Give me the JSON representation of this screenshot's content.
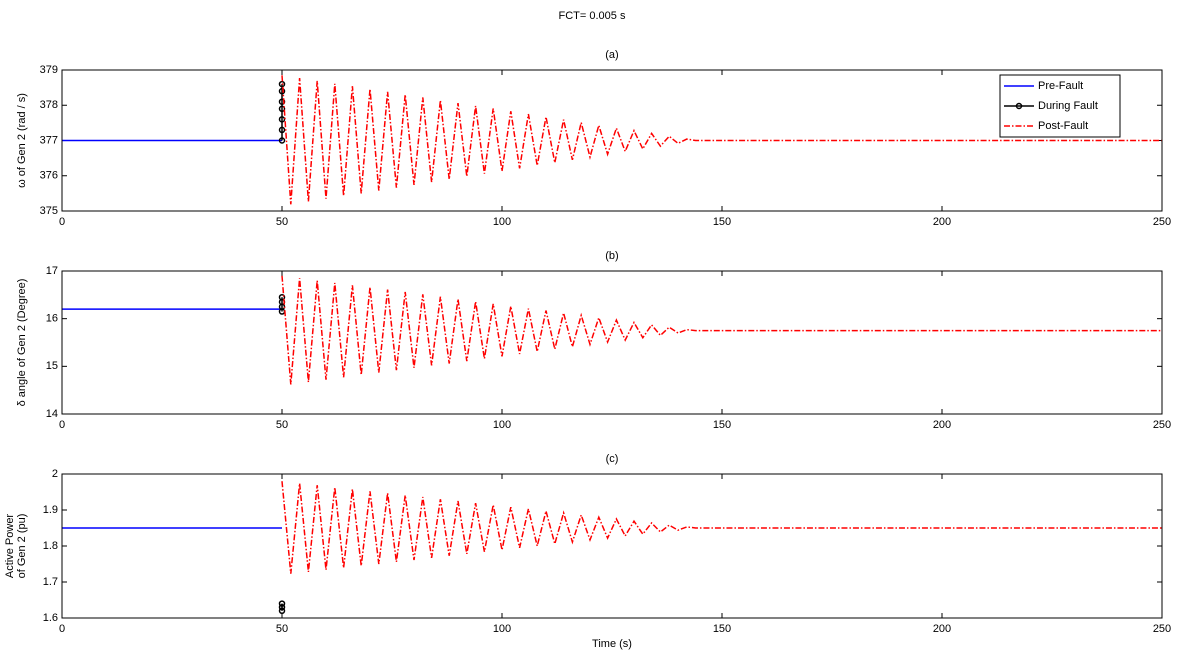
{
  "title": "FCT= 0.005 s",
  "chart_data": [
    {
      "type": "line",
      "title": "(a)",
      "ylabel": "ω of Gen 2 (rad / s)",
      "xlim": [
        0,
        250
      ],
      "xticks": [
        0,
        50,
        100,
        150,
        200,
        250
      ],
      "ylim": [
        375,
        379
      ],
      "yticks": [
        375,
        376,
        377,
        378,
        379
      ],
      "legend": "upper right",
      "series": [
        {
          "name": "Pre-Fault",
          "color": "#0000ff",
          "x": [
            0,
            50
          ],
          "values": [
            377,
            377
          ]
        },
        {
          "name": "During Fault",
          "color": "#000000",
          "marker": "o",
          "x": [
            50,
            50,
            50,
            50,
            50,
            50,
            50
          ],
          "values": [
            377,
            377.3,
            377.6,
            377.9,
            378.1,
            378.4,
            378.6
          ]
        },
        {
          "name": "Post-Fault",
          "color": "#ff0000",
          "dash": "dashdot",
          "x": [
            50,
            52,
            54,
            56,
            58,
            60,
            62,
            64,
            66,
            68,
            70,
            72,
            74,
            76,
            78,
            80,
            82,
            84,
            86,
            88,
            90,
            92,
            94,
            96,
            98,
            100,
            102,
            104,
            106,
            108,
            110,
            112,
            114,
            116,
            118,
            120,
            122,
            124,
            126,
            128,
            130,
            132,
            134,
            136,
            138,
            140,
            142,
            144,
            250
          ],
          "values": [
            378.85,
            375.19,
            378.77,
            375.27,
            378.69,
            375.35,
            378.61,
            375.43,
            378.54,
            375.5,
            378.46,
            375.58,
            378.38,
            375.66,
            378.3,
            375.74,
            378.22,
            375.82,
            378.14,
            375.9,
            378.06,
            375.98,
            377.98,
            376.06,
            377.91,
            376.13,
            377.83,
            376.21,
            377.75,
            376.29,
            377.67,
            376.37,
            377.59,
            376.45,
            377.51,
            376.53,
            377.43,
            376.61,
            377.35,
            376.69,
            377.28,
            376.76,
            377.2,
            376.84,
            377.12,
            376.92,
            377.04,
            377,
            377
          ]
        }
      ]
    },
    {
      "type": "line",
      "title": "(b)",
      "ylabel": "δ angle of Gen 2 (Degree)",
      "xlim": [
        0,
        250
      ],
      "xticks": [
        0,
        50,
        100,
        150,
        200,
        250
      ],
      "ylim": [
        14,
        17
      ],
      "yticks": [
        14,
        15,
        16,
        17
      ],
      "series": [
        {
          "color": "#0000ff",
          "x": [
            0,
            50
          ],
          "values": [
            16.2,
            16.2
          ]
        },
        {
          "color": "#000000",
          "marker": "o",
          "x": [
            50,
            50,
            50,
            50
          ],
          "values": [
            16.15,
            16.25,
            16.35,
            16.45
          ]
        },
        {
          "color": "#ff0000",
          "dash": "dashdot",
          "x": [
            50,
            52,
            54,
            56,
            58,
            60,
            62,
            64,
            66,
            68,
            70,
            72,
            74,
            76,
            78,
            80,
            82,
            84,
            86,
            88,
            90,
            92,
            94,
            96,
            98,
            100,
            102,
            104,
            106,
            108,
            110,
            112,
            114,
            116,
            118,
            120,
            122,
            124,
            126,
            128,
            130,
            132,
            134,
            136,
            138,
            140,
            142,
            144,
            250
          ],
          "values": [
            16.9,
            14.62,
            16.85,
            14.67,
            16.8,
            14.72,
            16.75,
            14.77,
            16.7,
            14.82,
            16.66,
            14.87,
            16.61,
            14.92,
            16.56,
            14.97,
            16.51,
            15.02,
            16.46,
            15.06,
            16.41,
            15.11,
            16.36,
            15.16,
            16.31,
            15.21,
            16.26,
            15.26,
            16.21,
            15.31,
            16.17,
            15.36,
            16.12,
            15.41,
            16.07,
            15.46,
            16.02,
            15.51,
            15.97,
            15.55,
            15.92,
            15.6,
            15.87,
            15.65,
            15.82,
            15.7,
            15.77,
            15.75,
            15.75
          ]
        }
      ]
    },
    {
      "type": "line",
      "title": "(c)",
      "ylabel": [
        "Active Power",
        "of Gen 2 (pu)"
      ],
      "xlabel": "Time (s)",
      "xlim": [
        0,
        250
      ],
      "xticks": [
        0,
        50,
        100,
        150,
        200,
        250
      ],
      "ylim": [
        1.6,
        2
      ],
      "yticks": [
        1.6,
        1.7,
        1.8,
        1.9,
        2
      ],
      "series": [
        {
          "color": "#0000ff",
          "x": [
            0,
            50
          ],
          "values": [
            1.85,
            1.85
          ]
        },
        {
          "color": "#000000",
          "marker": "o",
          "x": [
            50,
            50,
            50
          ],
          "values": [
            1.62,
            1.63,
            1.64
          ]
        },
        {
          "color": "#ff0000",
          "dash": "dashdot",
          "x": [
            50,
            52,
            54,
            56,
            58,
            60,
            62,
            64,
            66,
            68,
            70,
            72,
            74,
            76,
            78,
            80,
            82,
            84,
            86,
            88,
            90,
            92,
            94,
            96,
            98,
            100,
            102,
            104,
            106,
            108,
            110,
            112,
            114,
            116,
            118,
            120,
            122,
            124,
            126,
            128,
            130,
            132,
            134,
            136,
            138,
            140,
            142,
            144,
            250
          ],
          "values": [
            1.98,
            1.723,
            1.974,
            1.728,
            1.969,
            1.734,
            1.963,
            1.739,
            1.958,
            1.745,
            1.952,
            1.75,
            1.947,
            1.756,
            1.941,
            1.761,
            1.936,
            1.767,
            1.93,
            1.773,
            1.925,
            1.778,
            1.919,
            1.784,
            1.914,
            1.789,
            1.908,
            1.795,
            1.903,
            1.8,
            1.897,
            1.806,
            1.892,
            1.811,
            1.886,
            1.817,
            1.88,
            1.822,
            1.875,
            1.828,
            1.869,
            1.833,
            1.864,
            1.839,
            1.858,
            1.844,
            1.853,
            1.85,
            1.85
          ]
        }
      ]
    }
  ]
}
